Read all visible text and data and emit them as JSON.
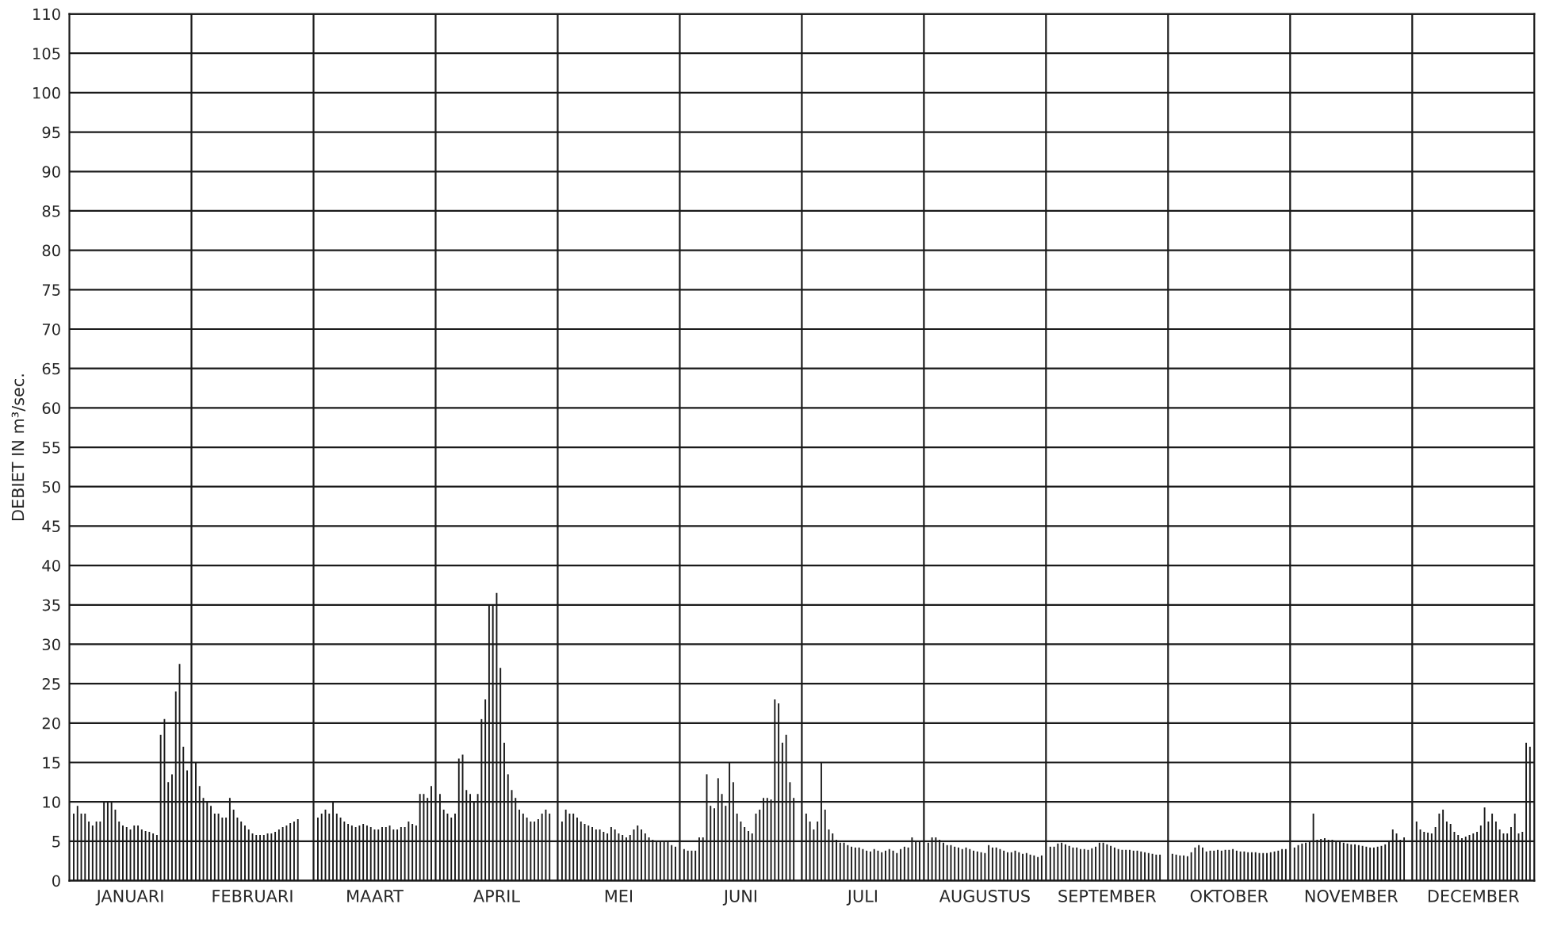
{
  "chart_data": {
    "type": "bar",
    "ylabel": "DEBIET IN m³/sec.",
    "categories": [
      "JANUARI",
      "FEBRUARI",
      "MAART",
      "APRIL",
      "MEI",
      "JUNI",
      "JULI",
      "AUGUSTUS",
      "SEPTEMBER",
      "OKTOBER",
      "NOVEMBER",
      "DECEMBER"
    ],
    "series": [
      {
        "color": "#1a1a1a",
        "values": [
          8.5,
          15,
          8,
          11,
          7.5,
          4,
          8.5,
          4.8,
          4.3,
          3.4,
          4.2,
          7.5
        ]
      },
      {
        "color": "#1a1a1a",
        "values": [
          9.5,
          12,
          8.5,
          9,
          9,
          3.8,
          7.5,
          5.5,
          4.3,
          3.3,
          4.5,
          6.5
        ]
      },
      {
        "color": "#1a1a1a",
        "values": [
          8.5,
          10.5,
          9,
          8.5,
          8.5,
          3.8,
          6.5,
          5.5,
          4.7,
          3.2,
          4.7,
          6.2
        ]
      },
      {
        "color": "#1a1a1a",
        "values": [
          8.5,
          10,
          8.5,
          8,
          8.5,
          3.8,
          7.5,
          5.2,
          4.8,
          3.2,
          4.8,
          6.1
        ]
      },
      {
        "color": "#1a1a1a",
        "values": [
          7.5,
          9.5,
          10,
          8.5,
          8,
          5.5,
          15,
          4.8,
          4.6,
          3.1,
          5,
          6
        ]
      },
      {
        "color": "#1a1a1a",
        "values": [
          7,
          8.5,
          8.5,
          15.5,
          7.5,
          5.5,
          9,
          4.5,
          4.4,
          3.6,
          8.5,
          6.8
        ]
      },
      {
        "color": "#1a1a1a",
        "values": [
          7.5,
          8.5,
          8,
          16,
          7.2,
          13.5,
          6.5,
          4.5,
          4.2,
          4.2,
          5.2,
          8.5
        ]
      },
      {
        "color": "#1a1a1a",
        "values": [
          7.5,
          8,
          7.5,
          11.5,
          7,
          9.5,
          6,
          4.3,
          4.2,
          4.5,
          5.3,
          9
        ]
      },
      {
        "color": "#1a1a1a",
        "values": [
          10,
          8,
          7.2,
          11,
          6.8,
          9.2,
          5.2,
          4.2,
          4,
          4.2,
          5.4,
          7.5
        ]
      },
      {
        "color": "#1a1a1a",
        "values": [
          10,
          10.5,
          7,
          10,
          6.5,
          13,
          4.8,
          4,
          4,
          3.7,
          5.2,
          7.2
        ]
      },
      {
        "color": "#1a1a1a",
        "values": [
          10,
          9,
          6.8,
          11,
          6.5,
          11,
          4.8,
          4.2,
          3.9,
          3.8,
          5.2,
          6.2
        ]
      },
      {
        "color": "#1a1a1a",
        "values": [
          9,
          8,
          7,
          20.5,
          6.2,
          9.5,
          4.5,
          4,
          4.1,
          3.8,
          5,
          5.8
        ]
      },
      {
        "color": "#1a1a1a",
        "values": [
          7.5,
          7.5,
          7.2,
          23,
          6,
          15,
          4.3,
          3.8,
          4.3,
          3.9,
          4.9,
          5.4
        ]
      },
      {
        "color": "#1a1a1a",
        "values": [
          7,
          7,
          7,
          35,
          6.8,
          12.5,
          4.2,
          3.7,
          4.8,
          3.8,
          4.8,
          5.6
        ]
      },
      {
        "color": "#1a1a1a",
        "values": [
          6.8,
          6.5,
          6.8,
          35,
          6.5,
          8.5,
          4.2,
          3.6,
          4.8,
          3.9,
          4.7,
          5.8
        ]
      },
      {
        "color": "#1a1a1a",
        "values": [
          6.5,
          6,
          6.5,
          36.5,
          6,
          7.5,
          4,
          3.5,
          4.6,
          3.9,
          4.6,
          6
        ]
      },
      {
        "color": "#1a1a1a",
        "values": [
          7,
          5.8,
          6.5,
          27,
          5.8,
          6.8,
          3.8,
          4.5,
          4.4,
          4,
          4.6,
          6.2
        ]
      },
      {
        "color": "#1a1a1a",
        "values": [
          7,
          5.8,
          6.8,
          17.5,
          5.5,
          6.3,
          3.7,
          4.2,
          4.2,
          3.8,
          4.5,
          7
        ]
      },
      {
        "color": "#1a1a1a",
        "values": [
          6.5,
          5.8,
          6.8,
          13.5,
          5.8,
          6,
          4,
          4.2,
          4,
          3.7,
          4.4,
          9.3
        ]
      },
      {
        "color": "#1a1a1a",
        "values": [
          6.3,
          6,
          7,
          11.5,
          6.5,
          8.5,
          3.8,
          4,
          3.9,
          3.7,
          4.3,
          7.5
        ]
      },
      {
        "color": "#1a1a1a",
        "values": [
          6.2,
          6,
          6.5,
          10.5,
          7,
          9,
          3.6,
          3.8,
          3.9,
          3.6,
          4.2,
          8.5
        ]
      },
      {
        "color": "#1a1a1a",
        "values": [
          6,
          6.2,
          6.5,
          9,
          6.5,
          10.5,
          3.8,
          3.6,
          3.9,
          3.6,
          4.2,
          7.5
        ]
      },
      {
        "color": "#1a1a1a",
        "values": [
          5.8,
          6.5,
          6.8,
          8.5,
          6,
          10.5,
          4,
          3.6,
          3.8,
          3.6,
          4.3,
          6.5
        ]
      },
      {
        "color": "#1a1a1a",
        "values": [
          18.5,
          6.8,
          6.8,
          8,
          5.5,
          10.3,
          3.8,
          3.8,
          3.8,
          3.5,
          4.4,
          6
        ]
      },
      {
        "color": "#1a1a1a",
        "values": [
          20.5,
          7,
          7.5,
          7.5,
          5.2,
          23,
          3.5,
          3.6,
          3.7,
          3.5,
          4.6,
          6
        ]
      },
      {
        "color": "#1a1a1a",
        "values": [
          12.5,
          7.3,
          7.2,
          7.5,
          5,
          22.5,
          4,
          3.4,
          3.6,
          3.5,
          5,
          6.8
        ]
      },
      {
        "color": "#1a1a1a",
        "values": [
          13.5,
          7.5,
          7,
          7.8,
          5,
          17.5,
          4.3,
          3.5,
          3.5,
          3.6,
          6.5,
          8.5
        ]
      },
      {
        "color": "#1a1a1a",
        "values": [
          24,
          7.8,
          11,
          8.5,
          5,
          18.5,
          4.2,
          3.3,
          3.4,
          3.7,
          6,
          6
        ]
      },
      {
        "color": "#1a1a1a",
        "values": [
          27.5,
          null,
          11,
          9,
          5,
          12.5,
          5.5,
          3.2,
          3.3,
          3.8,
          5.2,
          6.2
        ]
      },
      {
        "color": "#1a1a1a",
        "values": [
          17,
          null,
          10.5,
          8.5,
          4.5,
          10.5,
          5,
          3,
          3.3,
          4,
          5.5,
          17.5
        ]
      },
      {
        "color": "#1a1a1a",
        "values": [
          14,
          null,
          12,
          null,
          4.3,
          null,
          5,
          3.2,
          null,
          4,
          null,
          17
        ]
      }
    ],
    "ylim": [
      0,
      110
    ],
    "yticks": [
      0,
      5,
      10,
      15,
      20,
      25,
      30,
      35,
      40,
      45,
      50,
      55,
      60,
      65,
      70,
      75,
      80,
      85,
      90,
      95,
      100,
      105,
      110
    ],
    "grid": true
  }
}
